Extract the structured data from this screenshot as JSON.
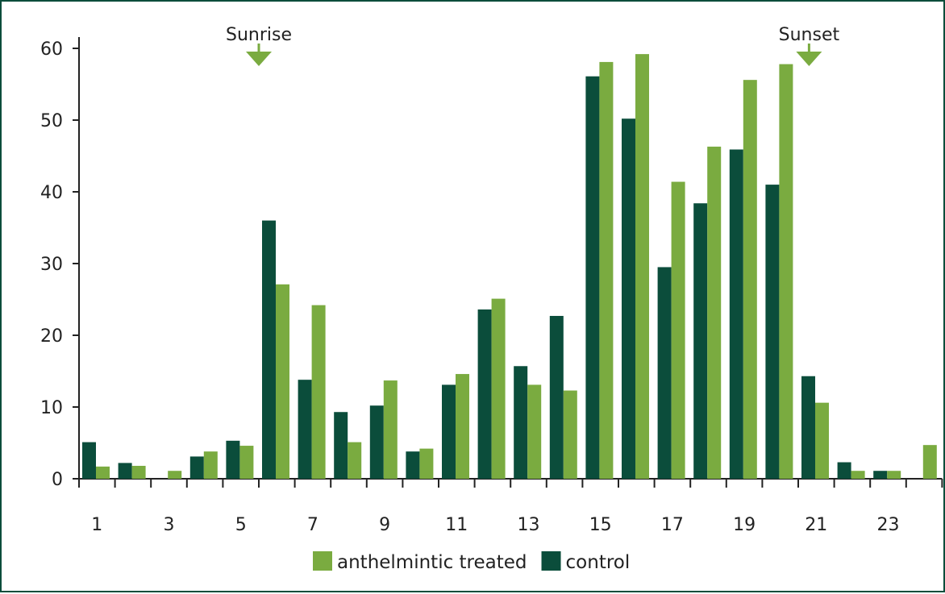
{
  "chart_data": {
    "type": "bar",
    "title": "",
    "xlabel": "",
    "ylabel": "",
    "ylim": [
      0,
      60
    ],
    "y_ticks": [
      0,
      10,
      20,
      30,
      40,
      50,
      60
    ],
    "x_tick_labels": [
      "1",
      "3",
      "5",
      "7",
      "9",
      "11",
      "13",
      "15",
      "17",
      "19",
      "21",
      "23"
    ],
    "categories": [
      1,
      2,
      3,
      4,
      5,
      6,
      7,
      8,
      9,
      10,
      11,
      12,
      13,
      14,
      15,
      16,
      17,
      18,
      19,
      20,
      21,
      22,
      23,
      24
    ],
    "series": [
      {
        "name": "control",
        "color": "#0b4d3b",
        "values": [
          5.1,
          2.2,
          0,
          3.1,
          5.3,
          36,
          13.8,
          9.3,
          10.2,
          3.8,
          13.1,
          23.6,
          15.7,
          22.7,
          56.1,
          50.2,
          29.5,
          38.4,
          45.9,
          41.0,
          14.3,
          2.3,
          1.1,
          0
        ]
      },
      {
        "name": "anthelmintic treated",
        "color": "#7aab40",
        "values": [
          1.7,
          1.8,
          1.1,
          3.8,
          4.6,
          27.1,
          24.2,
          5.1,
          13.7,
          4.2,
          14.6,
          25.1,
          13.1,
          12.3,
          58.1,
          59.2,
          41.4,
          46.3,
          55.6,
          57.8,
          10.6,
          1.1,
          1.1,
          4.7
        ]
      }
    ],
    "annotations": [
      {
        "text": "Sunrise",
        "x": 5.5
      },
      {
        "text": "Sunset",
        "x": 20.8
      }
    ],
    "legend": {
      "position": "bottom-center",
      "order": [
        "anthelmintic treated",
        "control"
      ]
    },
    "grid": false
  }
}
